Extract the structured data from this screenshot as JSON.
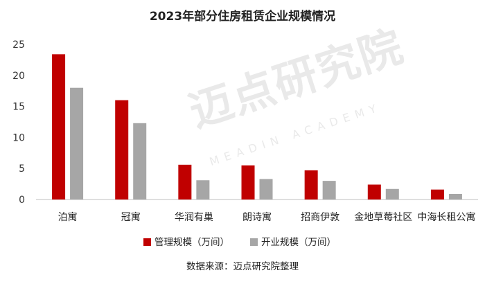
{
  "chart_data": {
    "type": "bar",
    "title": "2023年部分住房租赁企业规模情况",
    "categories": [
      "泊寓",
      "冠寓",
      "华润有巢",
      "朗诗寓",
      "招商伊敦",
      "金地草莓社区",
      "中海长租公寓"
    ],
    "series": [
      {
        "name": "管理规模（万间）",
        "values": [
          23.4,
          16.0,
          5.6,
          5.5,
          4.7,
          2.4,
          1.6
        ],
        "color": "#c00000"
      },
      {
        "name": "开业规模（万间）",
        "values": [
          18.0,
          12.3,
          3.1,
          3.3,
          3.0,
          1.7,
          0.9
        ],
        "color": "#a6a6a6"
      }
    ],
    "yticks": [
      "0",
      "5",
      "10",
      "15",
      "20",
      "25"
    ],
    "ylim": [
      0,
      25
    ],
    "grid": false,
    "legend": "bottom",
    "source": "数据来源：迈点研究院整理"
  },
  "watermark": {
    "main": "迈点研究院",
    "sub": "MEADIN ACADEMY"
  }
}
